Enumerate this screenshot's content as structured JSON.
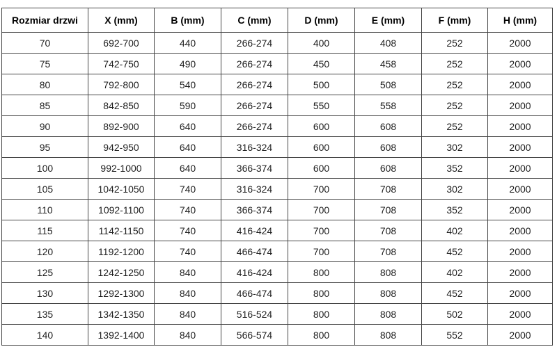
{
  "chart_data": {
    "type": "table",
    "columns": [
      "Rozmiar drzwi",
      "X (mm)",
      "B (mm)",
      "C (mm)",
      "D (mm)",
      "E (mm)",
      "F (mm)",
      "H (mm)"
    ],
    "rows": [
      [
        "70",
        "692-700",
        "440",
        "266-274",
        "400",
        "408",
        "252",
        "2000"
      ],
      [
        "75",
        "742-750",
        "490",
        "266-274",
        "450",
        "458",
        "252",
        "2000"
      ],
      [
        "80",
        "792-800",
        "540",
        "266-274",
        "500",
        "508",
        "252",
        "2000"
      ],
      [
        "85",
        "842-850",
        "590",
        "266-274",
        "550",
        "558",
        "252",
        "2000"
      ],
      [
        "90",
        "892-900",
        "640",
        "266-274",
        "600",
        "608",
        "252",
        "2000"
      ],
      [
        "95",
        "942-950",
        "640",
        "316-324",
        "600",
        "608",
        "302",
        "2000"
      ],
      [
        "100",
        "992-1000",
        "640",
        "366-374",
        "600",
        "608",
        "352",
        "2000"
      ],
      [
        "105",
        "1042-1050",
        "740",
        "316-324",
        "700",
        "708",
        "302",
        "2000"
      ],
      [
        "110",
        "1092-1100",
        "740",
        "366-374",
        "700",
        "708",
        "352",
        "2000"
      ],
      [
        "115",
        "1142-1150",
        "740",
        "416-424",
        "700",
        "708",
        "402",
        "2000"
      ],
      [
        "120",
        "1192-1200",
        "740",
        "466-474",
        "700",
        "708",
        "452",
        "2000"
      ],
      [
        "125",
        "1242-1250",
        "840",
        "416-424",
        "800",
        "808",
        "402",
        "2000"
      ],
      [
        "130",
        "1292-1300",
        "840",
        "466-474",
        "800",
        "808",
        "452",
        "2000"
      ],
      [
        "135",
        "1342-1350",
        "840",
        "516-524",
        "800",
        "808",
        "502",
        "2000"
      ],
      [
        "140",
        "1392-1400",
        "840",
        "566-574",
        "800",
        "808",
        "552",
        "2000"
      ]
    ]
  },
  "colors": {
    "border": "#454545",
    "text": "#1e1e1e",
    "header_text": "#000000",
    "background": "#ffffff"
  }
}
